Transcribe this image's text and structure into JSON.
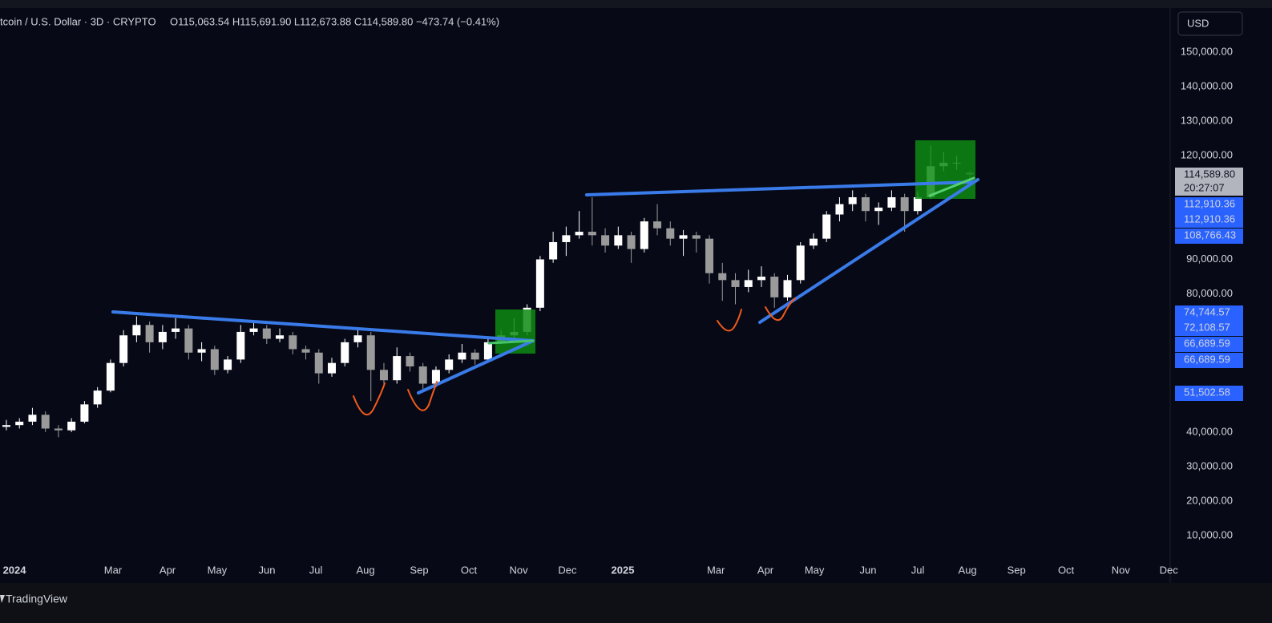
{
  "chart_data": {
    "type": "candlestick",
    "header": "tcoin / U.S. Dollar · 3D · CRYPTO",
    "ohlc_label": "O115,063.54  H115,691.90  L112,673.88  C114,589.80  −473.74 (−0.41%)",
    "currency": "USD",
    "brand": "TradingView",
    "up_color": "#ffffff",
    "down_color": "#9a9a9a",
    "open": [
      41500,
      42000,
      43000,
      45000,
      41000,
      40500,
      43000,
      48000,
      52000,
      60000,
      68000,
      71000,
      66000,
      69000,
      70000,
      63000,
      64000,
      58000,
      61000,
      69000,
      70000,
      67000,
      68000,
      64000,
      63000,
      57000,
      60000,
      66000,
      68000,
      58000,
      55000,
      62000,
      59000,
      54000,
      58000,
      61000,
      63000,
      61000,
      66000,
      68000,
      69000,
      76000,
      90000,
      95000,
      97000,
      98000,
      97000,
      94000,
      97000,
      93000,
      101000,
      99000,
      96000,
      97000,
      96000,
      86000,
      84000,
      82000,
      84000,
      85000,
      79000,
      84000,
      94000,
      96000,
      103000,
      106000,
      108000,
      104000,
      105000,
      108000,
      104000,
      108000,
      117000,
      118000,
      115063.54
    ],
    "high": [
      43500,
      44000,
      47000,
      46000,
      42000,
      44000,
      49000,
      53000,
      61000,
      69500,
      73500,
      72000,
      71000,
      73000,
      71000,
      66000,
      65000,
      62000,
      71000,
      72000,
      71000,
      70000,
      69000,
      65000,
      64000,
      61500,
      67000,
      70000,
      69000,
      60000,
      64500,
      63000,
      60000,
      59000,
      62500,
      65500,
      64000,
      67000,
      69500,
      73000,
      77000,
      91000,
      98000,
      99500,
      104000,
      108000,
      99000,
      99500,
      98000,
      102000,
      106000,
      101000,
      98500,
      98000,
      97000,
      89000,
      86000,
      87000,
      88000,
      86000,
      85500,
      95000,
      97500,
      104000,
      108000,
      110000,
      109000,
      106500,
      110000,
      109000,
      109500,
      123000,
      121000,
      120000,
      115691.9
    ],
    "low": [
      40500,
      41000,
      42000,
      40000,
      38500,
      40000,
      42500,
      47000,
      51500,
      59000,
      66000,
      63000,
      64000,
      67000,
      61000,
      60500,
      56500,
      57000,
      60000,
      68000,
      65500,
      66000,
      62500,
      61000,
      54000,
      56000,
      59000,
      64500,
      49000,
      53500,
      54000,
      57500,
      52500,
      53000,
      57000,
      60000,
      59500,
      60500,
      65500,
      66500,
      68000,
      75000,
      89000,
      91000,
      96000,
      94000,
      92000,
      93000,
      89000,
      92000,
      97000,
      94000,
      91000,
      92000,
      83000,
      78000,
      77000,
      80500,
      82000,
      76000,
      78000,
      83000,
      93000,
      95000,
      101000,
      104000,
      101000,
      100000,
      104000,
      98000,
      103000,
      107500,
      115500,
      116000,
      112673.88
    ],
    "close": [
      42000,
      43000,
      45000,
      41000,
      40500,
      43000,
      48000,
      52000,
      60000,
      68000,
      71000,
      66000,
      69000,
      70000,
      63000,
      64000,
      58000,
      61000,
      69000,
      70000,
      67000,
      68000,
      64000,
      63000,
      57000,
      60000,
      66000,
      68000,
      58000,
      55000,
      62000,
      59000,
      54000,
      58000,
      61000,
      63000,
      61000,
      66000,
      68000,
      69000,
      76000,
      90000,
      95000,
      97000,
      98000,
      97000,
      94000,
      97000,
      93000,
      101000,
      99000,
      96000,
      97000,
      96000,
      86000,
      84000,
      82000,
      84000,
      85000,
      79000,
      84000,
      94000,
      96000,
      103000,
      106000,
      108000,
      104000,
      105000,
      108000,
      104000,
      108000,
      117000,
      118000,
      118000,
      114589.8
    ],
    "xlim": [
      -0.49,
      89.4
    ],
    "xticks": [
      {
        "value": 0.62,
        "label": "2024"
      },
      {
        "value": 8.19,
        "label": "Mar"
      },
      {
        "value": 12.38,
        "label": "Apr"
      },
      {
        "value": 16.19,
        "label": "May"
      },
      {
        "value": 20.01,
        "label": "Jun"
      },
      {
        "value": 23.77,
        "label": "Jul"
      },
      {
        "value": 27.59,
        "label": "Aug"
      },
      {
        "value": 31.71,
        "label": "Sep"
      },
      {
        "value": 35.53,
        "label": "Oct"
      },
      {
        "value": 39.35,
        "label": "Nov"
      },
      {
        "value": 43.1,
        "label": "Dec"
      },
      {
        "value": 47.35,
        "label": "2025"
      },
      {
        "value": 54.5,
        "label": "Mar"
      },
      {
        "value": 58.31,
        "label": "Apr"
      },
      {
        "value": 62.07,
        "label": "May"
      },
      {
        "value": 66.19,
        "label": "Jun"
      },
      {
        "value": 70.01,
        "label": "Jul"
      },
      {
        "value": 73.83,
        "label": "Aug"
      },
      {
        "value": 77.59,
        "label": "Sep"
      },
      {
        "value": 81.4,
        "label": "Oct"
      },
      {
        "value": 85.6,
        "label": "Nov"
      },
      {
        "value": 89.29,
        "label": "Dec"
      }
    ],
    "ylim": [
      -3700,
      162800
    ],
    "yticks": [
      {
        "value": 150000,
        "label": "150,000.00"
      },
      {
        "value": 140000,
        "label": "140,000.00"
      },
      {
        "value": 130000,
        "label": "130,000.00"
      },
      {
        "value": 120000,
        "label": "120,000.00"
      },
      {
        "value": 90000,
        "label": "90,000.00"
      },
      {
        "value": 80000,
        "label": "80,000.00"
      },
      {
        "value": 40000,
        "label": "40,000.00"
      },
      {
        "value": 30000,
        "label": "30,000.00"
      },
      {
        "value": 20000,
        "label": "20,000.00"
      },
      {
        "value": 10000,
        "label": "10,000.00"
      }
    ],
    "last_price": "114,589.80",
    "countdown": "20:27:07",
    "price_labels": [
      "112,910.36",
      "112,910.36",
      "108,766.43",
      "74,744.57",
      "72,108.57",
      "66,689.59",
      "66,689.59",
      "51,502.58"
    ]
  }
}
